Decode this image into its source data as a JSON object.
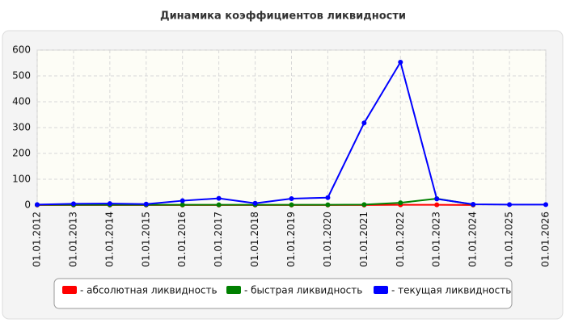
{
  "chart_data": {
    "type": "line",
    "title": "Динамика коэффициентов ликвидности",
    "categories": [
      "01.01.2012",
      "01.01.2013",
      "01.01.2014",
      "01.01.2015",
      "01.01.2016",
      "01.01.2017",
      "01.01.2018",
      "01.01.2019",
      "01.01.2020",
      "01.01.2021",
      "01.01.2022",
      "01.01.2023",
      "01.01.2024",
      "01.01.2025",
      "01.01.2026"
    ],
    "series": [
      {
        "name": "- абсолютная ликвидность",
        "color": "#ff0000",
        "values": [
          0.5,
          0.5,
          0.5,
          0.5,
          0.5,
          0.5,
          0.5,
          0.5,
          0.5,
          0.5,
          1,
          1,
          0.5,
          null,
          null
        ]
      },
      {
        "name": "- быстрая ликвидность",
        "color": "#008000",
        "values": [
          1,
          1,
          1,
          1,
          1,
          1,
          1,
          1,
          1,
          2,
          9,
          25,
          2,
          null,
          null
        ]
      },
      {
        "name": "- текущая ликвидность",
        "color": "#0000ff",
        "values": [
          2,
          5,
          6,
          4,
          17,
          26,
          7,
          25,
          29,
          318,
          553,
          24,
          3,
          2,
          2
        ]
      }
    ],
    "ylim": [
      0,
      600
    ],
    "yticks": [
      0,
      100,
      200,
      300,
      400,
      500,
      600
    ],
    "grid": true
  }
}
